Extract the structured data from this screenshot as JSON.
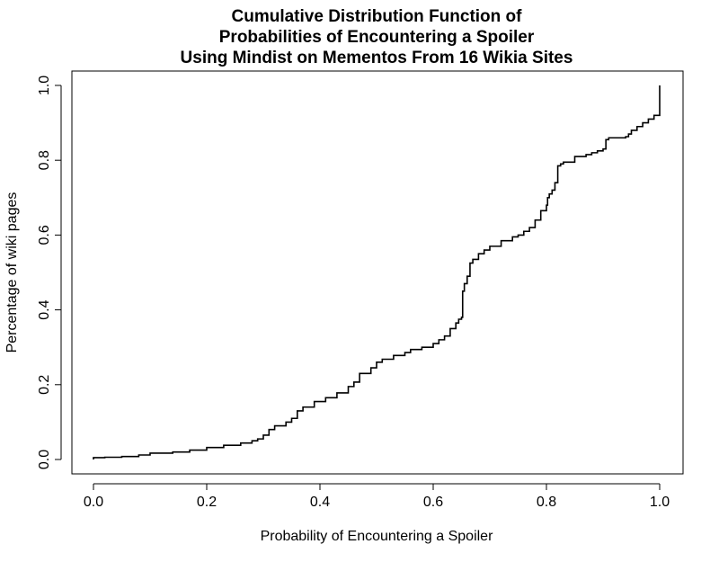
{
  "chart_data": {
    "type": "line",
    "step": true,
    "title": [
      "Cumulative Distribution Function of",
      "Probabilities of Encountering a Spoiler",
      "Using Mindist on Mementos From 16 Wikia Sites"
    ],
    "xlabel": "Probability of Encountering a Spoiler",
    "ylabel": "Percentage of wiki pages",
    "xlim": [
      0,
      1
    ],
    "ylim": [
      0,
      1
    ],
    "x_ticks": [
      "0.0",
      "0.2",
      "0.4",
      "0.6",
      "0.8",
      "1.0"
    ],
    "y_ticks": [
      "0.0",
      "0.2",
      "0.4",
      "0.6",
      "0.8",
      "1.0"
    ],
    "grid": false,
    "legend": "none",
    "line_color": "#000000",
    "series": [
      {
        "x": [
          0.0,
          0.0,
          0.02,
          0.05,
          0.08,
          0.1,
          0.14,
          0.17,
          0.2,
          0.23,
          0.26,
          0.28,
          0.29,
          0.3,
          0.31,
          0.32,
          0.34,
          0.35,
          0.36,
          0.37,
          0.39,
          0.41,
          0.43,
          0.45,
          0.46,
          0.47,
          0.49,
          0.5,
          0.51,
          0.53,
          0.55,
          0.56,
          0.58,
          0.6,
          0.61,
          0.62,
          0.63,
          0.64,
          0.645,
          0.65,
          0.652,
          0.655,
          0.66,
          0.665,
          0.67,
          0.68,
          0.69,
          0.7,
          0.72,
          0.74,
          0.75,
          0.76,
          0.77,
          0.78,
          0.79,
          0.8,
          0.802,
          0.805,
          0.81,
          0.815,
          0.82,
          0.825,
          0.83,
          0.85,
          0.87,
          0.88,
          0.89,
          0.9,
          0.905,
          0.91,
          0.94,
          0.945,
          0.95,
          0.96,
          0.97,
          0.98,
          0.99,
          1.0,
          1.0
        ],
        "y": [
          0.0,
          0.005,
          0.006,
          0.008,
          0.012,
          0.017,
          0.02,
          0.025,
          0.032,
          0.038,
          0.044,
          0.05,
          0.055,
          0.065,
          0.08,
          0.09,
          0.1,
          0.11,
          0.13,
          0.14,
          0.155,
          0.165,
          0.178,
          0.195,
          0.207,
          0.23,
          0.245,
          0.26,
          0.268,
          0.278,
          0.286,
          0.294,
          0.3,
          0.31,
          0.32,
          0.33,
          0.35,
          0.365,
          0.375,
          0.38,
          0.45,
          0.47,
          0.49,
          0.525,
          0.535,
          0.55,
          0.56,
          0.57,
          0.585,
          0.595,
          0.6,
          0.61,
          0.62,
          0.64,
          0.665,
          0.68,
          0.7,
          0.71,
          0.72,
          0.74,
          0.785,
          0.79,
          0.795,
          0.81,
          0.815,
          0.82,
          0.825,
          0.83,
          0.855,
          0.86,
          0.863,
          0.87,
          0.88,
          0.89,
          0.9,
          0.91,
          0.92,
          0.935,
          1.0
        ]
      }
    ]
  }
}
